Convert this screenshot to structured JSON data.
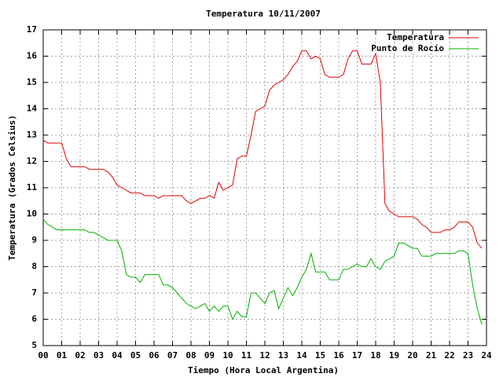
{
  "chart_data": {
    "type": "line",
    "title": "Temperatura 10/11/2007",
    "x_label": "Tiempo (Hora Local Argentina)",
    "y_label": "Temperatura (Grados Celsius)",
    "x": [
      0,
      0.25,
      0.5,
      0.75,
      1,
      1.25,
      1.5,
      1.75,
      2,
      2.25,
      2.5,
      2.75,
      3,
      3.25,
      3.5,
      3.75,
      4,
      4.25,
      4.5,
      4.75,
      5,
      5.25,
      5.5,
      5.75,
      6,
      6.25,
      6.5,
      6.75,
      7,
      7.25,
      7.5,
      7.75,
      8,
      8.25,
      8.5,
      8.75,
      9,
      9.25,
      9.5,
      9.75,
      10,
      10.25,
      10.5,
      10.75,
      11,
      11.25,
      11.5,
      11.75,
      12,
      12.25,
      12.5,
      12.75,
      13,
      13.25,
      13.5,
      13.75,
      14,
      14.25,
      14.5,
      14.75,
      15,
      15.25,
      15.5,
      15.75,
      16,
      16.25,
      16.5,
      16.75,
      17,
      17.25,
      17.5,
      17.75,
      18,
      18.25,
      18.5,
      18.75,
      19,
      19.25,
      19.5,
      19.75,
      20,
      20.25,
      20.5,
      20.75,
      21,
      21.25,
      21.5,
      21.75,
      22,
      22.25,
      22.5,
      22.75,
      23,
      23.25,
      23.5,
      23.75
    ],
    "series": [
      {
        "name": "Temperatura",
        "color": "#e00000",
        "values": [
          12.8,
          12.7,
          12.7,
          12.7,
          12.7,
          12.1,
          11.8,
          11.8,
          11.8,
          11.8,
          11.7,
          11.7,
          11.7,
          11.7,
          11.6,
          11.4,
          11.1,
          11.0,
          10.9,
          10.8,
          10.8,
          10.8,
          10.7,
          10.7,
          10.7,
          10.6,
          10.7,
          10.7,
          10.7,
          10.7,
          10.7,
          10.5,
          10.4,
          10.5,
          10.6,
          10.6,
          10.7,
          10.6,
          11.2,
          10.9,
          11.0,
          11.1,
          12.1,
          12.2,
          12.2,
          13.0,
          13.9,
          14.0,
          14.1,
          14.7,
          14.9,
          15.0,
          15.1,
          15.3,
          15.6,
          15.8,
          16.2,
          16.2,
          15.9,
          16.0,
          15.9,
          15.3,
          15.2,
          15.2,
          15.2,
          15.3,
          15.9,
          16.2,
          16.2,
          15.7,
          15.7,
          15.7,
          16.1,
          15.0,
          10.4,
          10.1,
          10.0,
          9.9,
          9.9,
          9.9,
          9.9,
          9.8,
          9.6,
          9.5,
          9.3,
          9.3,
          9.3,
          9.4,
          9.4,
          9.5,
          9.7,
          9.7,
          9.7,
          9.5,
          8.9,
          8.7
        ]
      },
      {
        "name": "Punto de Rocío",
        "color": "#00b000",
        "values": [
          9.8,
          9.6,
          9.5,
          9.4,
          9.4,
          9.4,
          9.4,
          9.4,
          9.4,
          9.4,
          9.3,
          9.3,
          9.2,
          9.1,
          9.0,
          9.0,
          9.0,
          8.6,
          7.7,
          7.6,
          7.6,
          7.4,
          7.7,
          7.7,
          7.7,
          7.7,
          7.3,
          7.3,
          7.2,
          7.0,
          6.8,
          6.6,
          6.5,
          6.4,
          6.5,
          6.6,
          6.3,
          6.5,
          6.3,
          6.5,
          6.5,
          6.0,
          6.3,
          6.1,
          6.1,
          7.0,
          7.0,
          6.8,
          6.6,
          7.0,
          7.1,
          6.4,
          6.8,
          7.2,
          6.9,
          7.2,
          7.6,
          7.9,
          8.5,
          7.8,
          7.8,
          7.8,
          7.5,
          7.5,
          7.5,
          7.9,
          7.9,
          8.0,
          8.1,
          8.0,
          8.0,
          8.3,
          8.0,
          7.9,
          8.2,
          8.3,
          8.4,
          8.9,
          8.9,
          8.8,
          8.7,
          8.7,
          8.4,
          8.4,
          8.4,
          8.5,
          8.5,
          8.5,
          8.5,
          8.5,
          8.6,
          8.6,
          8.5,
          7.3,
          6.4,
          5.8
        ]
      }
    ],
    "xlim": [
      0,
      24
    ],
    "xticks": [
      {
        "value": 0,
        "label": "00"
      },
      {
        "value": 1,
        "label": "01"
      },
      {
        "value": 2,
        "label": "02"
      },
      {
        "value": 3,
        "label": "03"
      },
      {
        "value": 4,
        "label": "04"
      },
      {
        "value": 5,
        "label": "05"
      },
      {
        "value": 6,
        "label": "06"
      },
      {
        "value": 7,
        "label": "07"
      },
      {
        "value": 8,
        "label": "08"
      },
      {
        "value": 9,
        "label": "09"
      },
      {
        "value": 10,
        "label": "10"
      },
      {
        "value": 11,
        "label": "11"
      },
      {
        "value": 12,
        "label": "12"
      },
      {
        "value": 13,
        "label": "13"
      },
      {
        "value": 14,
        "label": "14"
      },
      {
        "value": 15,
        "label": "15"
      },
      {
        "value": 16,
        "label": "16"
      },
      {
        "value": 17,
        "label": "17"
      },
      {
        "value": 18,
        "label": "18"
      },
      {
        "value": 19,
        "label": "19"
      },
      {
        "value": 20,
        "label": "20"
      },
      {
        "value": 21,
        "label": "21"
      },
      {
        "value": 22,
        "label": "22"
      },
      {
        "value": 23,
        "label": "23"
      },
      {
        "value": 24,
        "label": "24"
      }
    ],
    "ylim": [
      5,
      17
    ],
    "yticks": [
      5,
      6,
      7,
      8,
      9,
      10,
      11,
      12,
      13,
      14,
      15,
      16,
      17
    ],
    "grid": true,
    "legend": "top-right"
  }
}
